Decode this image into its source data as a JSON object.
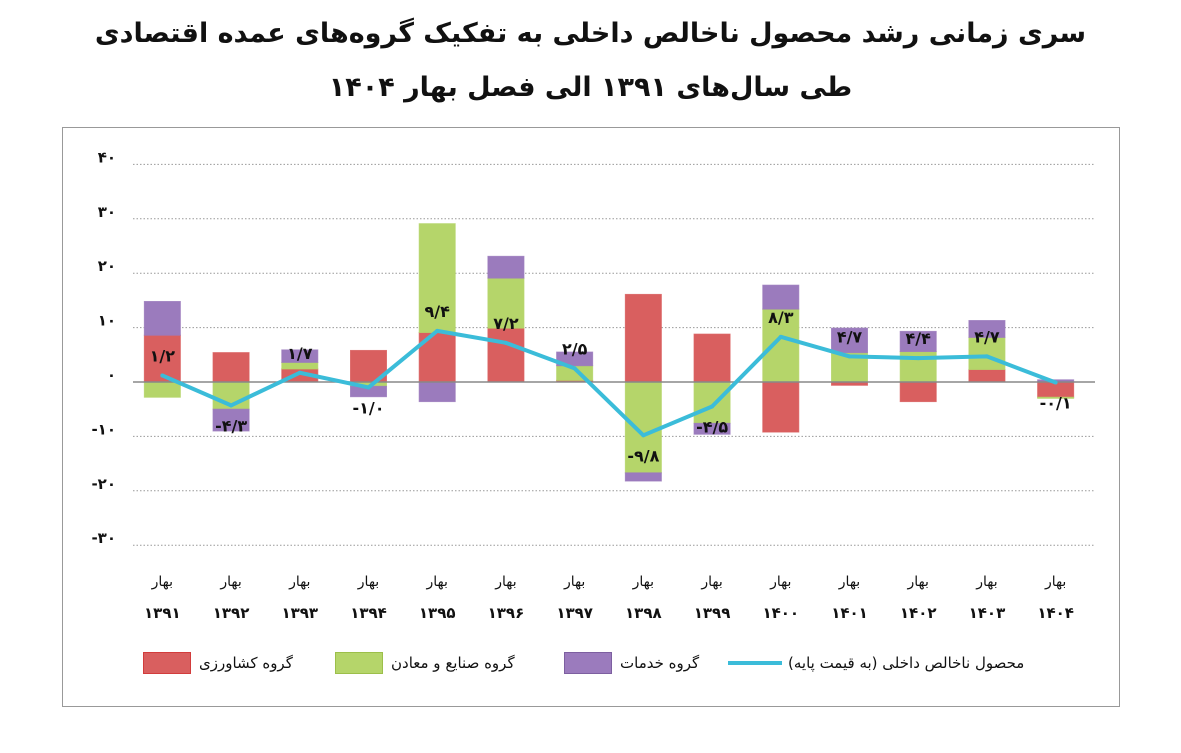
{
  "chart_data": {
    "type": "bar",
    "stacked": true,
    "title": "سری زمانی رشد محصول ناخالص داخلی به تفکیک گروه‌های عمده اقتصادی",
    "subtitle": "طی سال‌های ۱۳۹۱ الی فصل بهار ۱۴۰۴",
    "season_label": "بهار",
    "categories": [
      "۱۳۹۱",
      "۱۳۹۲",
      "۱۳۹۳",
      "۱۳۹۴",
      "۱۳۹۵",
      "۱۳۹۶",
      "۱۳۹۷",
      "۱۳۹۸",
      "۱۳۹۹",
      "۱۴۰۰",
      "۱۴۰۱",
      "۱۴۰۲",
      "۱۴۰۳",
      "۱۴۰۴"
    ],
    "ylim": [
      -30,
      40
    ],
    "yticks": [
      40,
      30,
      20,
      10,
      0,
      -10,
      -20,
      -30
    ],
    "ytick_labels": [
      "۴۰",
      "۳۰",
      "۲۰",
      "۱۰",
      "۰",
      "-۱۰",
      "-۲۰",
      "-۳۰"
    ],
    "grid": true,
    "legend_position": "bottom",
    "series": [
      {
        "name": "گروه کشاورزی",
        "color": "#d95f5f",
        "values": [
          8.6,
          5.4,
          2.4,
          5.8,
          9.1,
          9.9,
          0.3,
          16.1,
          8.8,
          -9.2,
          -0.6,
          -3.6,
          2.3,
          -2.8
        ]
      },
      {
        "name": "گروه صنایع و معادن",
        "color": "#b5d56a",
        "values": [
          -2.8,
          -5.0,
          1.2,
          -0.8,
          20.0,
          9.2,
          2.7,
          -16.7,
          -7.6,
          13.4,
          5.4,
          5.6,
          5.9,
          -0.2
        ]
      },
      {
        "name": "گروه خدمات",
        "color": "#9b7bbd",
        "values": [
          6.2,
          -4.0,
          2.3,
          -1.9,
          -3.6,
          4.0,
          2.5,
          -1.5,
          -2.0,
          4.4,
          4.5,
          3.7,
          3.1,
          0.4
        ]
      }
    ],
    "line": {
      "name": "محصول ناخالص داخلی (به قیمت پایه)",
      "color": "#3bbcd9",
      "values": [
        1.2,
        -4.3,
        1.7,
        -1.0,
        9.4,
        7.2,
        2.5,
        -9.8,
        -4.5,
        8.3,
        4.7,
        4.4,
        4.7,
        -0.1
      ],
      "labels": [
        "۱/۲",
        "-۴/۳",
        "۱/۷",
        "-۱/۰",
        "۹/۴",
        "۷/۲",
        "۲/۵",
        "-۹/۸",
        "-۴/۵",
        "۸/۳",
        "۴/۷",
        "۴/۴",
        "۴/۷",
        "-۰/۱"
      ]
    }
  }
}
